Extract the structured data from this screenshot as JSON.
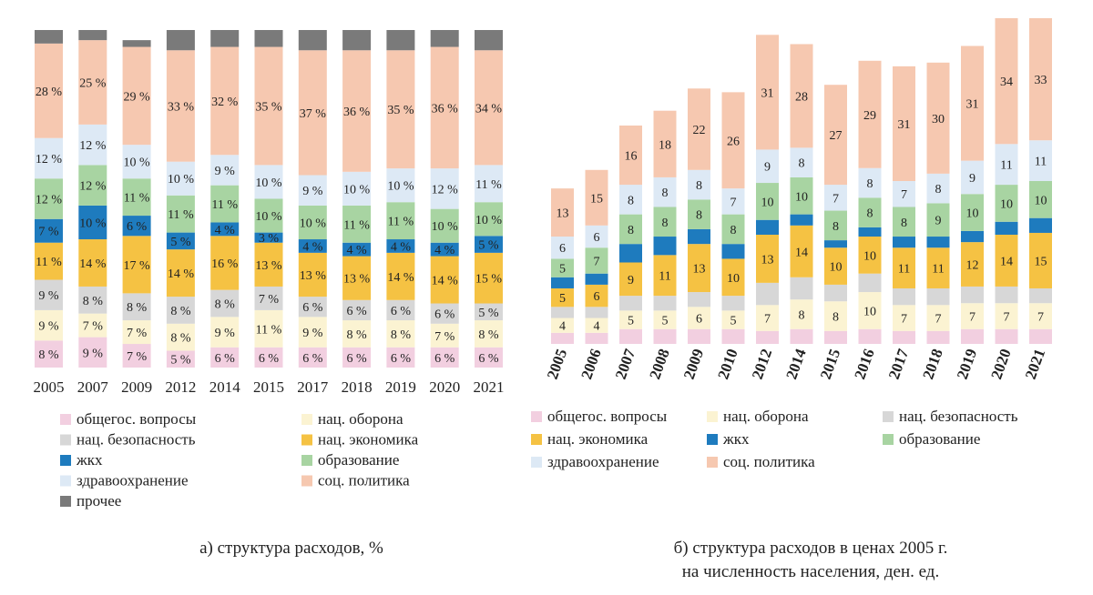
{
  "colors": {
    "obshchegos": "#f2cfe0",
    "oborona": "#fbf3d2",
    "bezopasnost": "#d7d7d7",
    "ekonomika": "#f5c243",
    "zhkh": "#1e7bbe",
    "obrazovanie": "#a8d4a2",
    "zdravookhranenie": "#dde9f5",
    "socpolitika": "#f6c8b0",
    "prochee": "#7a7a7a"
  },
  "captions": {
    "a": "а) структура расходов, %",
    "b_line1": "б) структура расходов в ценах 2005 г.",
    "b_line2": "на численность населения, ден. ед."
  },
  "chart_data": [
    {
      "type": "bar",
      "stacked": true,
      "percent": true,
      "title": "",
      "categories": [
        "2005",
        "2007",
        "2009",
        "2012",
        "2014",
        "2015",
        "2017",
        "2018",
        "2019",
        "2020",
        "2021"
      ],
      "ylim": [
        0,
        100
      ],
      "grid": false,
      "legend_position": "bottom",
      "label_suffix": " %",
      "series": [
        {
          "name": "общегос. вопросы",
          "color_key": "obshchegos",
          "values": [
            8,
            9,
            7,
            5,
            6,
            6,
            6,
            6,
            6,
            6,
            6
          ]
        },
        {
          "name": "нац. оборона",
          "color_key": "oborona",
          "values": [
            9,
            7,
            7,
            8,
            9,
            11,
            9,
            8,
            8,
            7,
            8
          ]
        },
        {
          "name": "нац. безопасность",
          "color_key": "bezopasnost",
          "values": [
            9,
            8,
            8,
            8,
            8,
            7,
            6,
            6,
            6,
            6,
            5
          ]
        },
        {
          "name": "нац. экономика",
          "color_key": "ekonomika",
          "values": [
            11,
            14,
            17,
            14,
            16,
            13,
            13,
            13,
            14,
            14,
            15
          ]
        },
        {
          "name": "жкх",
          "color_key": "zhkh",
          "values": [
            7,
            10,
            6,
            5,
            4,
            3,
            4,
            4,
            4,
            4,
            5
          ]
        },
        {
          "name": "образование",
          "color_key": "obrazovanie",
          "values": [
            12,
            12,
            11,
            11,
            11,
            10,
            10,
            11,
            11,
            10,
            10
          ]
        },
        {
          "name": "здравоохранение",
          "color_key": "zdravookhranenie",
          "values": [
            12,
            12,
            10,
            10,
            9,
            10,
            9,
            10,
            10,
            12,
            11
          ]
        },
        {
          "name": "соц. политика",
          "color_key": "socpolitika",
          "values": [
            28,
            25,
            29,
            33,
            32,
            35,
            37,
            36,
            35,
            36,
            34
          ]
        },
        {
          "name": "прочее",
          "color_key": "prochee",
          "values": [
            4,
            3,
            2,
            6,
            5,
            5,
            6,
            6,
            6,
            5,
            6
          ]
        }
      ]
    },
    {
      "type": "bar",
      "stacked": true,
      "title": "",
      "categories": [
        "2005",
        "2006",
        "2007",
        "2008",
        "2009",
        "2010",
        "2012",
        "2014",
        "2015",
        "2016",
        "2017",
        "2018",
        "2019",
        "2020",
        "2021"
      ],
      "ylim": [
        0,
        100
      ],
      "grid": false,
      "legend_position": "bottom",
      "series": [
        {
          "name": "общегос. вопросы",
          "color_key": "obshchegos",
          "values": [
            3,
            3,
            4,
            4,
            4,
            4,
            3.5,
            4,
            3.5,
            4,
            3.5,
            3.5,
            4,
            4,
            4
          ]
        },
        {
          "name": "нац. оборона",
          "color_key": "oborona",
          "values": [
            4,
            4,
            5,
            5,
            6,
            5,
            7,
            8,
            8,
            10,
            7,
            7,
            7,
            7,
            7
          ]
        },
        {
          "name": "нац. безопасность",
          "color_key": "bezopasnost",
          "values": [
            3,
            3,
            4,
            4,
            4,
            4,
            6,
            6,
            4.5,
            5,
            4.5,
            4.5,
            4.5,
            4.5,
            4
          ]
        },
        {
          "name": "нац. экономика",
          "color_key": "ekonomika",
          "values": [
            5,
            6,
            9,
            11,
            13,
            10,
            13,
            14,
            10,
            10,
            11,
            11,
            12,
            14,
            15
          ]
        },
        {
          "name": "жкх",
          "color_key": "zhkh",
          "values": [
            3,
            3,
            5,
            5,
            4,
            4,
            4,
            3,
            2,
            2.5,
            3,
            3,
            3,
            3.5,
            4
          ]
        },
        {
          "name": "образование",
          "color_key": "obrazovanie",
          "values": [
            5,
            7,
            8,
            8,
            8,
            8,
            10,
            10,
            8,
            8,
            8,
            9,
            10,
            10,
            10
          ]
        },
        {
          "name": "здравоохранение",
          "color_key": "zdravookhranenie",
          "values": [
            6,
            6,
            8,
            8,
            8,
            7,
            9,
            8,
            7,
            8,
            7,
            8,
            9,
            11,
            11
          ]
        },
        {
          "name": "соц. политика",
          "color_key": "socpolitika",
          "values": [
            13,
            15,
            16,
            18,
            22,
            26,
            31,
            28,
            27,
            29,
            31,
            30,
            31,
            34,
            33
          ]
        }
      ]
    }
  ]
}
